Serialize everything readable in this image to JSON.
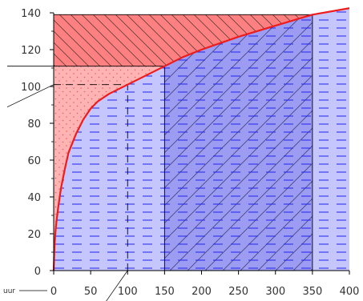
{
  "chart_data": {
    "type": "area",
    "title": "",
    "xlabel": "uur",
    "ylabel": "",
    "xlim": [
      0,
      400
    ],
    "ylim": [
      0,
      140
    ],
    "x_ticks": [
      "0",
      "50",
      "100",
      "150",
      "200",
      "250",
      "300",
      "350",
      "400"
    ],
    "y_ticks": [
      "0",
      "20",
      "40",
      "60",
      "80",
      "100",
      "120",
      "140"
    ],
    "grid": false,
    "legend": "none",
    "series": [
      {
        "values": [
          [
            0,
            0
          ],
          [
            1,
            13
          ],
          [
            3,
            24
          ],
          [
            6,
            34
          ],
          [
            10,
            45
          ],
          [
            15,
            55
          ],
          [
            20,
            64
          ],
          [
            30,
            74
          ],
          [
            40,
            82
          ],
          [
            50,
            88
          ],
          [
            60,
            92
          ],
          [
            75,
            96
          ],
          [
            100,
            101
          ],
          [
            125,
            106
          ],
          [
            150,
            111
          ],
          [
            175,
            116
          ],
          [
            200,
            120
          ],
          [
            250,
            127
          ],
          [
            300,
            133
          ],
          [
            350,
            139
          ],
          [
            400,
            143
          ]
        ]
      }
    ],
    "reference_lines": [
      {
        "orientation": "vertical",
        "x": 100,
        "y_to": 101,
        "style": "dashed"
      },
      {
        "orientation": "horizontal",
        "y": 101,
        "x_to": 100,
        "style": "dashed"
      },
      {
        "orientation": "vertical",
        "x": 150,
        "y_to": 111,
        "style": "solid"
      },
      {
        "orientation": "horizontal",
        "y": 111,
        "x_to": 150,
        "style": "solid"
      },
      {
        "orientation": "vertical",
        "x": 350,
        "y_to": 139,
        "style": "solid"
      },
      {
        "orientation": "horizontal",
        "y": 139,
        "x_to": 350,
        "style": "solid"
      }
    ],
    "regions": [
      {
        "label": "",
        "fill": "#ffb3b3",
        "pattern": "dots"
      },
      {
        "label": "",
        "fill": "#ff8080",
        "pattern": "backslash"
      },
      {
        "label": "",
        "fill": "#c6c6ff",
        "pattern": "dashes"
      },
      {
        "label": "",
        "fill": "#9c9cf2",
        "pattern": "slash"
      }
    ],
    "colors": {
      "curve": "#ee1c1c",
      "light_red": "#ffb3b3",
      "dark_red": "#ff8080",
      "light_blue": "#c6c6ff",
      "dark_blue": "#9c9cf2",
      "axis": "#000000"
    }
  }
}
